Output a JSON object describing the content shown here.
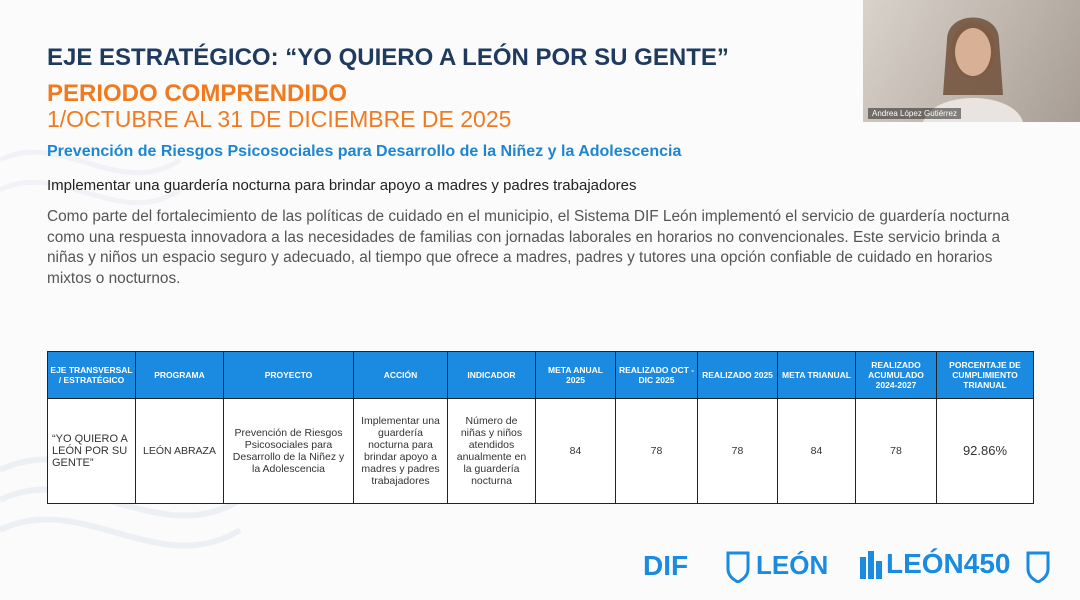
{
  "slide": {
    "title": "EJE ESTRATÉGICO: “YO QUIERO A LEÓN POR SU GENTE”",
    "period_label": "PERIODO COMPRENDIDO",
    "period": "1/OCTUBRE AL 31 DE DICIEMBRE DE 2025",
    "subtitle": "Prevención de Riesgos Psicosociales para Desarrollo de la Niñez y la Adolescencia",
    "heading": "Implementar una guardería nocturna para brindar apoyo a madres y padres trabajadores",
    "paragraph": "Como parte del fortalecimiento de las políticas de cuidado en el municipio, el Sistema DIF León implementó el servicio de guardería nocturna como una respuesta innovadora a las necesidades de familias con jornadas laborales en horarios no convencionales. Este servicio brinda a niñas y niños un espacio seguro y adecuado, al tiempo que ofrece a madres, padres y tutores una opción confiable de cuidado en horarios mixtos o nocturnos."
  },
  "table": {
    "headers": [
      "EJE TRANSVERSAL / ESTRATÉGICO",
      "PROGRAMA",
      "PROYECTO",
      "ACCIÓN",
      "INDICADOR",
      "META ANUAL 2025",
      "REALIZADO OCT - DIC 2025",
      "REALIZADO 2025",
      "META TRIANUAL",
      "REALIZADO ACUMULADO 2024-2027",
      "PORCENTAJE DE CUMPLIMIENTO TRIANUAL"
    ],
    "rows": [
      [
        "“YO QUIERO A LEÓN POR SU GENTE”",
        "LEÓN ABRAZA",
        "Prevención de Riesgos Psicosociales para Desarrollo de la Niñez y la Adolescencia",
        "Implementar una guardería nocturna para brindar apoyo a madres y padres trabajadores",
        "Número de niñas y niños atendidos anualmente en la guardería nocturna",
        84,
        78,
        78,
        84,
        78,
        "92.86%"
      ]
    ]
  },
  "logos": {
    "dif": "DIF",
    "leon": "LEÓN",
    "leon450": "LEÓN450"
  },
  "video": {
    "participant": "Andrea López Gutiérrez"
  }
}
